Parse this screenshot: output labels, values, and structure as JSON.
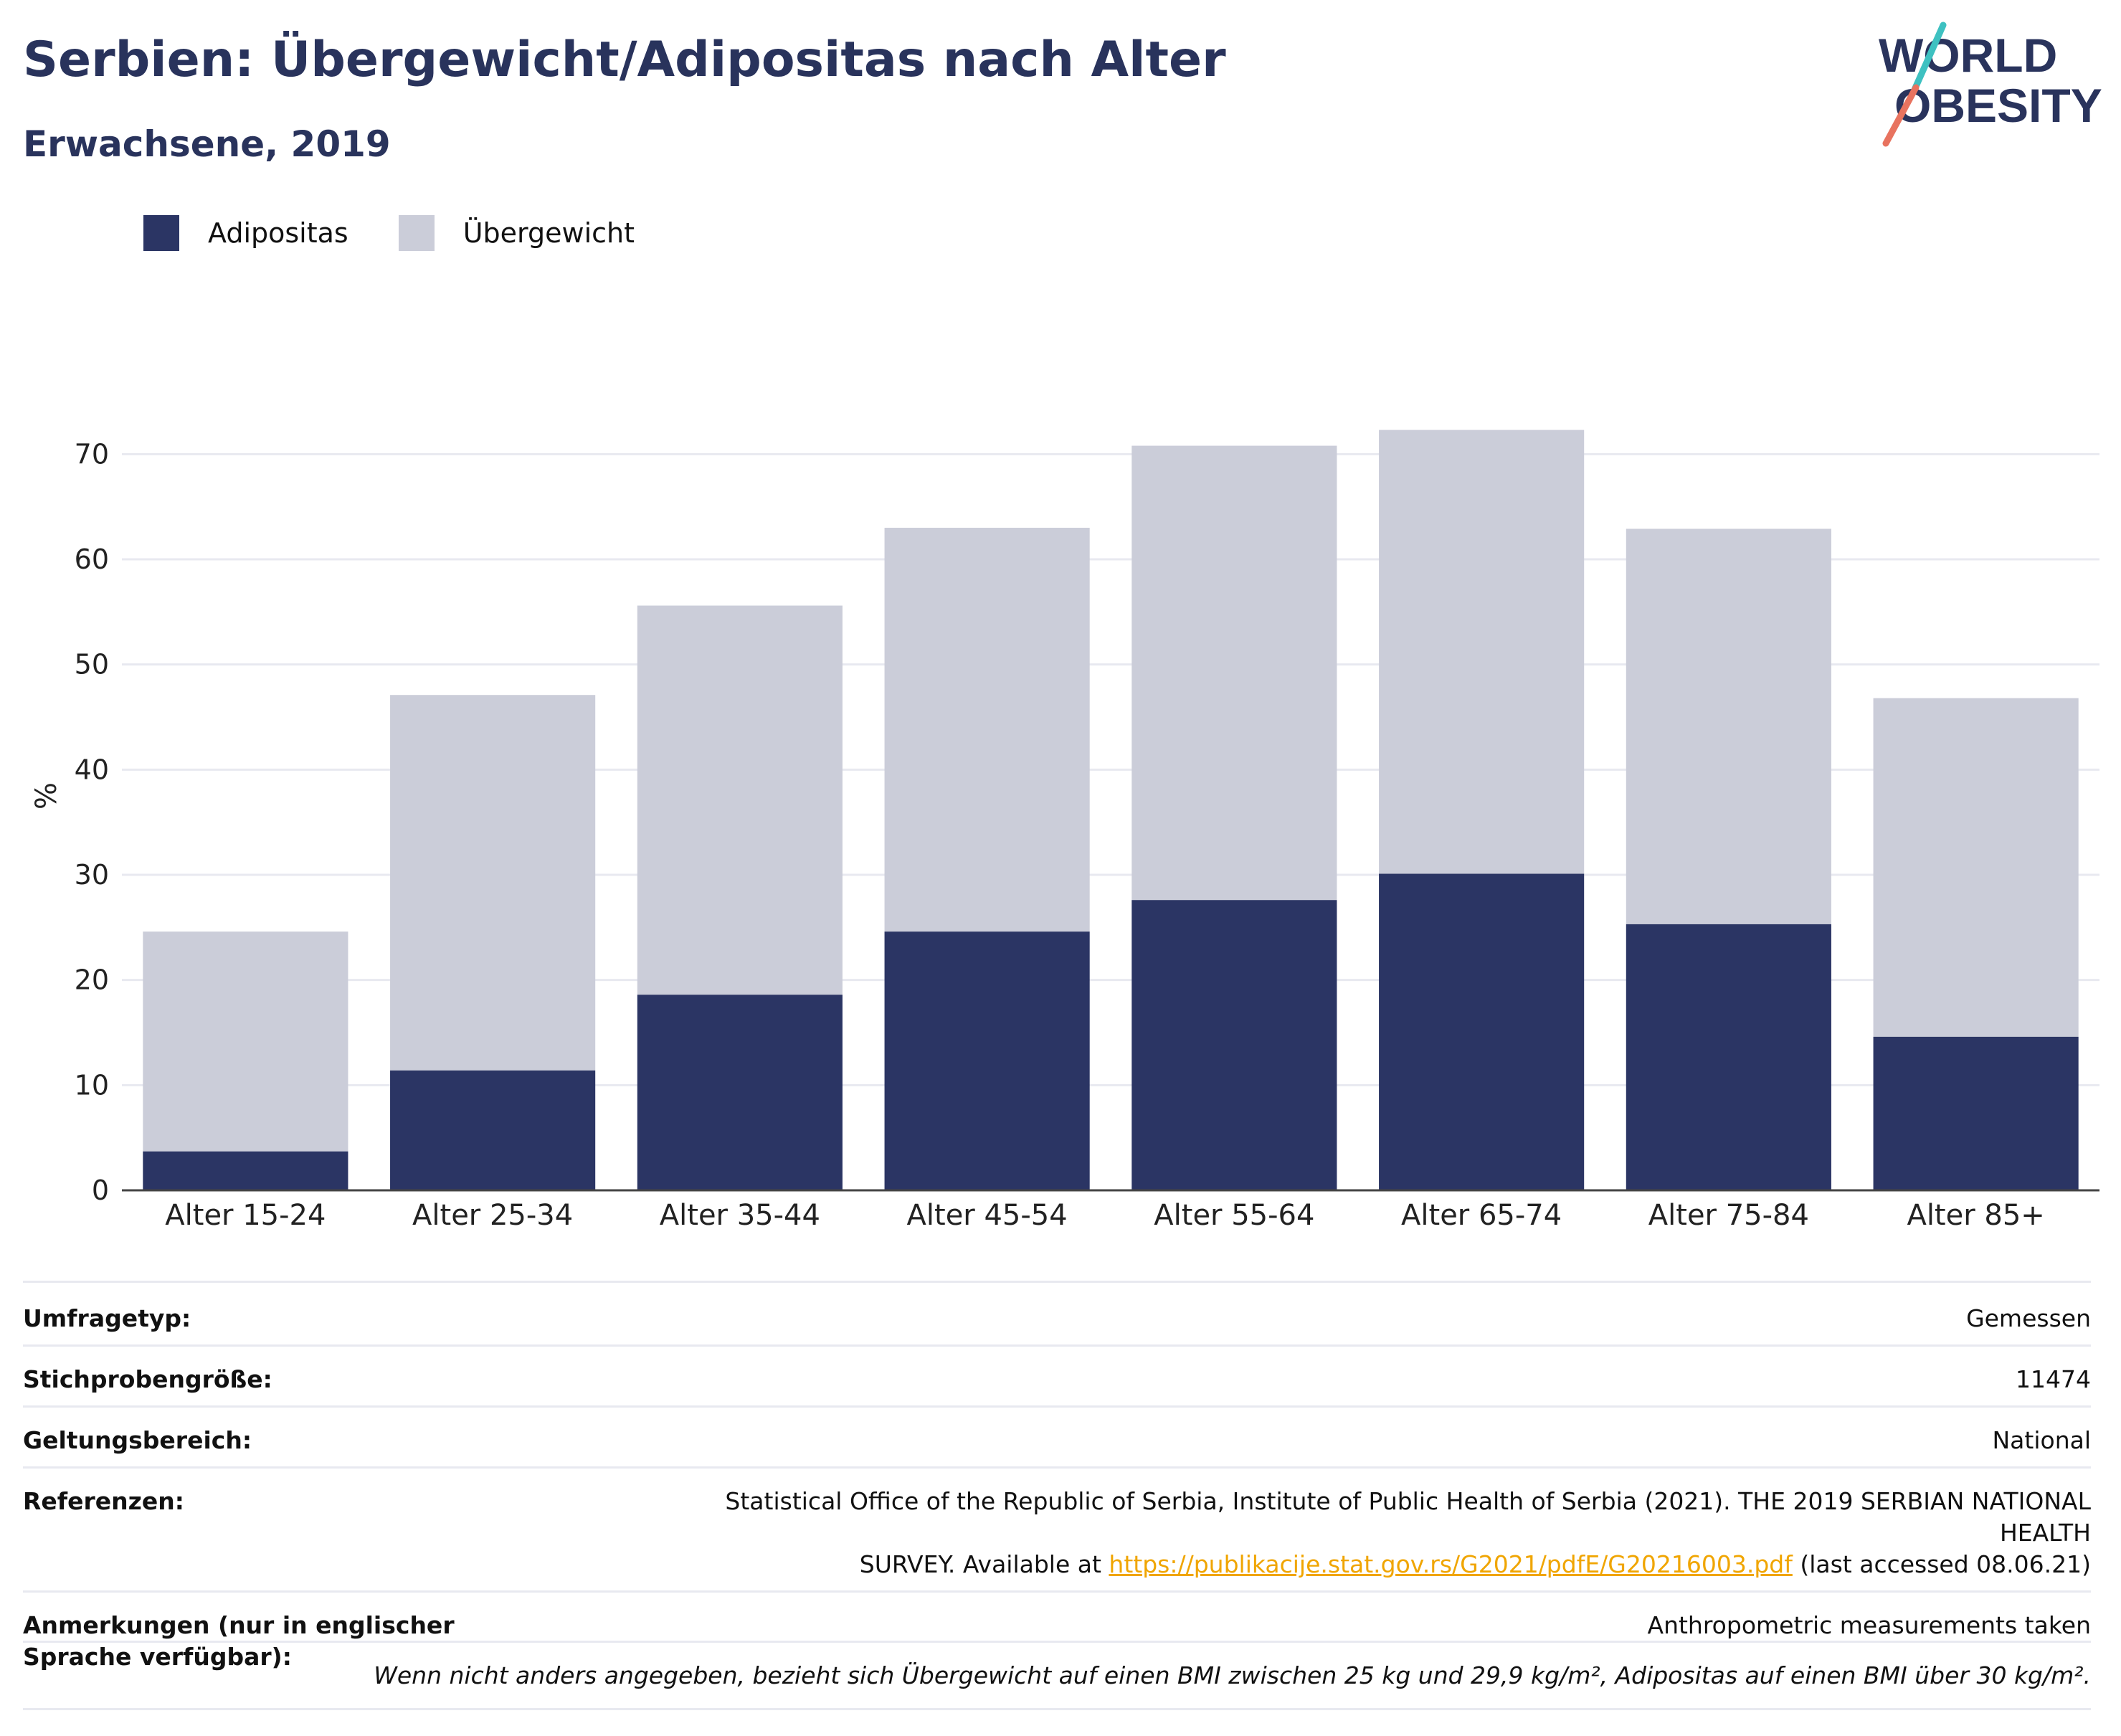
{
  "header": {
    "title": "Serbien: Übergewicht/Adipositas nach Alter",
    "subtitle": "Erwachsene, 2019",
    "logo_line1": "WORLD",
    "logo_line2": "OBESITY"
  },
  "colors": {
    "obesity": "#2b3564",
    "overweight": "#cbcdd9",
    "title": "#29335c",
    "link": "#f0a500",
    "logo_teal": "#3ec1c1",
    "logo_coral": "#e8735f"
  },
  "legend": {
    "items": [
      {
        "label": "Adipositas",
        "color": "#2b3564"
      },
      {
        "label": "Übergewicht",
        "color": "#cbcdd9"
      }
    ]
  },
  "chart_data": {
    "type": "bar",
    "stacked": true,
    "categories": [
      "Alter 15-24",
      "Alter 25-34",
      "Alter 35-44",
      "Alter 45-54",
      "Alter 55-64",
      "Alter 65-74",
      "Alter 75-84",
      "Alter 85+"
    ],
    "series": [
      {
        "name": "Adipositas",
        "values": [
          3.7,
          11.4,
          18.6,
          24.6,
          27.6,
          30.1,
          25.3,
          14.6
        ]
      },
      {
        "name": "Übergewicht",
        "values": [
          20.9,
          35.7,
          37.0,
          38.4,
          43.2,
          42.2,
          37.6,
          32.2
        ]
      }
    ],
    "title": "Serbien: Übergewicht/Adipositas nach Alter",
    "subtitle": "Erwachsene, 2019",
    "xlabel": "",
    "ylabel": "%",
    "ylim": [
      0,
      75
    ],
    "yticks": [
      0,
      10,
      20,
      30,
      40,
      50,
      60,
      70
    ],
    "grid": true,
    "legend_position": "top-left"
  },
  "info": {
    "rows": [
      {
        "label": "Umfragetyp:",
        "value": "Gemessen"
      },
      {
        "label": "Stichprobengröße:",
        "value": "11474"
      },
      {
        "label": "Geltungsbereich:",
        "value": "National"
      }
    ],
    "references": {
      "label": "Referenzen:",
      "line1": "Statistical Office of the Republic of Serbia, Institute of Public Health of Serbia (2021). THE 2019 SERBIAN NATIONAL HEALTH",
      "line2_before": "SURVEY. Available at ",
      "link": "https://publikacije.stat.gov.rs/G2021/pdfE/G20216003.pdf",
      "line2_after": " (last accessed 08.06.21)"
    },
    "notes": {
      "label": "Anmerkungen (nur in englischer Sprache verfügbar):",
      "value": "Anthropometric measurements taken"
    },
    "footnote": "Wenn nicht anders angegeben, bezieht sich Übergewicht auf einen BMI zwischen 25 kg und 29,9 kg/m², Adipositas auf einen BMI über 30 kg/m²."
  }
}
